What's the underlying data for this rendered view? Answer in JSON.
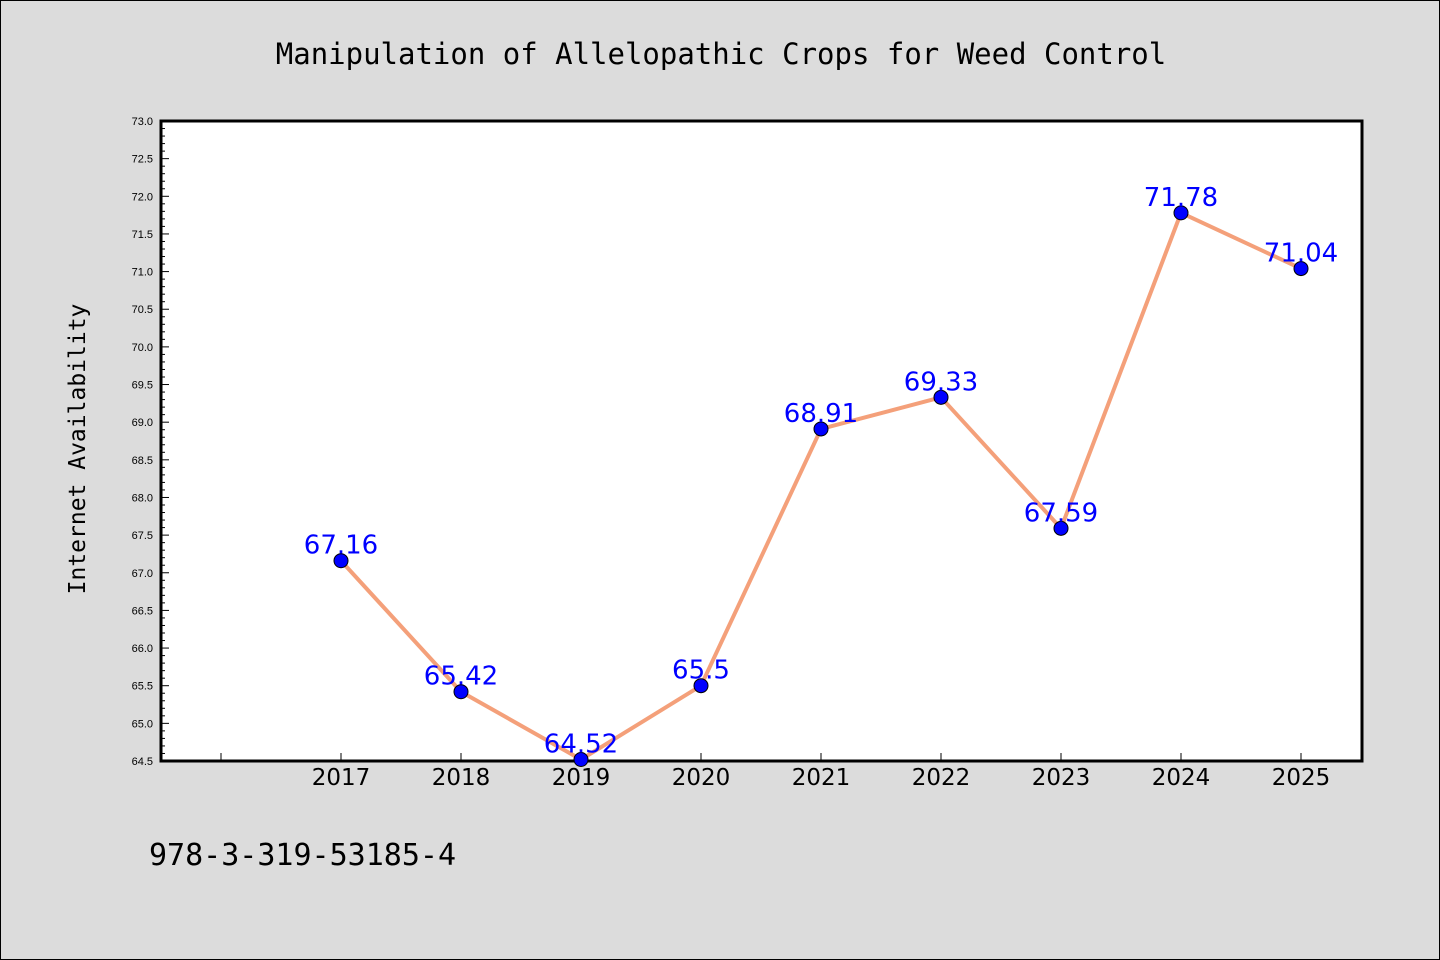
{
  "chart_data": {
    "type": "line",
    "title": "Manipulation of Allelopathic Crops for Weed Control",
    "xlabel": "",
    "ylabel": "Internet Availability",
    "categories": [
      "2017",
      "2018",
      "2019",
      "2020",
      "2021",
      "2022",
      "2023",
      "2024",
      "2025"
    ],
    "series": [
      {
        "values": [
          67.16,
          65.42,
          64.52,
          65.5,
          68.91,
          69.33,
          67.59,
          71.78,
          71.04
        ],
        "data_labels": [
          "67.16",
          "65.42",
          "64.52",
          "65.5",
          "68.91",
          "69.33",
          "67.59",
          "71.78",
          "71.04"
        ],
        "line_color": "#f4a07a",
        "marker_color": "#0000ff"
      }
    ],
    "ylim": [
      64.5,
      73.0
    ],
    "yticks": [
      "64.5",
      "65.0",
      "65.5",
      "66.0",
      "66.5",
      "67.0",
      "67.5",
      "68.0",
      "68.5",
      "69.0",
      "69.5",
      "70.0",
      "70.5",
      "71.0",
      "71.5",
      "72.0",
      "72.5",
      "73.0"
    ],
    "label_color": "#0000ff",
    "grid": false,
    "legend": "none"
  },
  "footer": {
    "text": "978-3-319-53185-4"
  },
  "colors": {
    "background": "#dcdcdc",
    "plot_area": "#ffffff"
  }
}
